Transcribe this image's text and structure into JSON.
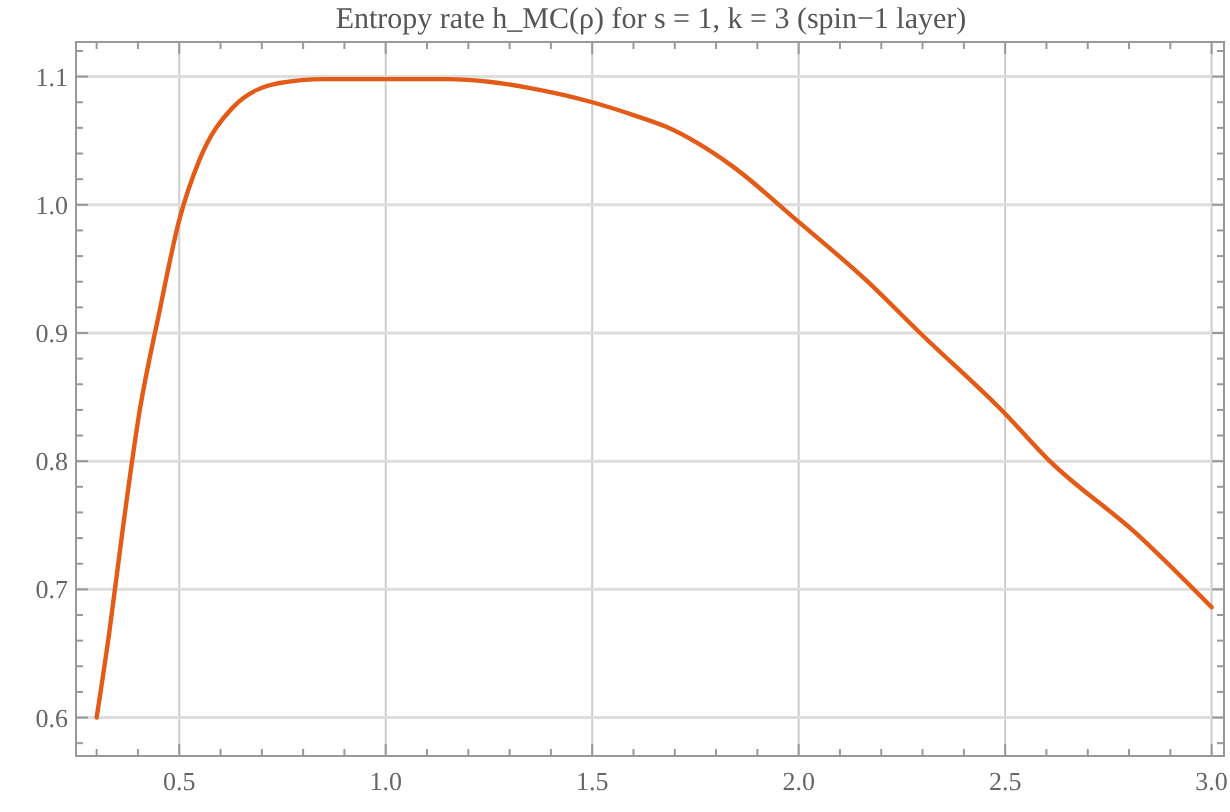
{
  "chart_data": {
    "type": "line",
    "title": "Entropy rate h_MC(ρ) for s = 1, k = 3 (spin−1 layer)",
    "xlim": [
      0.25,
      3.03
    ],
    "ylim": [
      0.57,
      1.127
    ],
    "xticks": [
      0.5,
      {
        "value": 1,
        "label": "1.0"
      },
      1.5,
      {
        "value": 2,
        "label": "2.0"
      },
      2.5,
      {
        "value": 3,
        "label": "3.0"
      }
    ],
    "yticks": [
      0.6,
      0.7,
      0.8,
      0.9,
      {
        "value": 1,
        "label": "1.0"
      },
      1.1
    ],
    "grid": true,
    "marker": "none",
    "line_style": "solid",
    "series": [
      {
        "color": "#e35b16",
        "x": [
          0.3,
          0.33,
          0.362,
          0.403,
          0.451,
          0.5,
          0.549,
          0.63,
          0.743,
          0.85,
          1.0,
          1.15,
          1.25,
          1.35,
          1.5,
          1.6,
          1.678,
          1.84,
          1.995,
          2.164,
          2.294,
          2.5,
          2.605,
          2.816,
          3.0
        ],
        "values": [
          0.6,
          0.665,
          0.744,
          0.837,
          0.915,
          0.988,
          1.035,
          1.076,
          1.095,
          1.098,
          1.098,
          1.098,
          1.096,
          1.091,
          1.08,
          1.07,
          1.061,
          1.03,
          0.988,
          0.941,
          0.9,
          0.837,
          0.801,
          0.744,
          0.686
        ]
      }
    ]
  }
}
